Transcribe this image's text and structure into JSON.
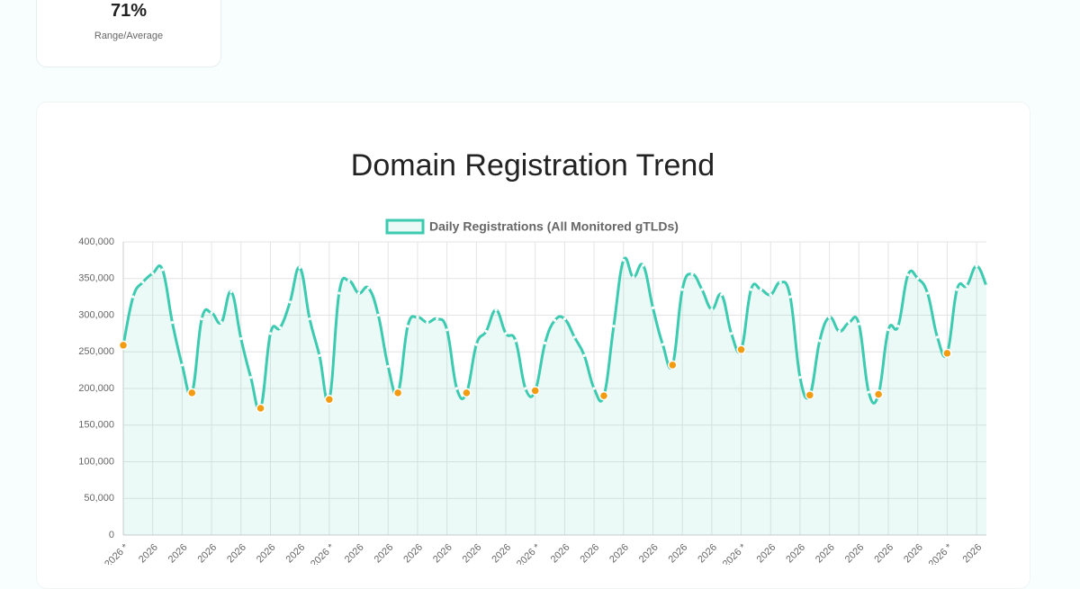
{
  "stat_card": {
    "value": "71%",
    "label": "Range/Average"
  },
  "chart_data": {
    "type": "line",
    "title": "Domain Registration Trend",
    "categories": [
      "2026 *",
      null,
      null,
      "2026",
      null,
      null,
      "2026",
      null,
      null,
      "2026",
      null,
      null,
      "2026",
      null,
      null,
      "2026",
      null,
      null,
      "2026",
      null,
      null,
      "2026 *",
      null,
      null,
      "2026",
      null,
      null,
      "2026",
      null,
      null,
      "2026",
      null,
      null,
      "2026",
      null,
      null,
      "2026",
      null,
      null,
      "2026",
      null,
      null,
      "2026 *",
      null,
      null,
      "2026",
      null,
      null,
      "2026",
      null,
      null,
      "2026",
      null,
      null,
      "2026",
      null,
      null,
      "2026",
      null,
      null,
      "2026",
      null,
      null,
      "2026 *",
      null,
      null,
      "2026",
      null,
      null,
      "2026",
      null,
      null,
      "2026",
      null,
      null,
      "2026",
      null,
      null,
      "2026",
      null,
      null,
      "2026",
      null,
      null,
      "2026 *",
      null,
      null,
      "2026",
      null
    ],
    "series": [
      {
        "name": "Daily Registrations (All Monitored gTLDs)",
        "color": "#3ccbb0",
        "fill": "rgba(60,203,176,0.10)",
        "values": [
          259000,
          325000,
          345000,
          357000,
          362000,
          290000,
          232000,
          194000,
          295000,
          303000,
          290000,
          332000,
          268000,
          215000,
          173000,
          275000,
          283000,
          318000,
          365000,
          295000,
          245000,
          185000,
          330000,
          347000,
          330000,
          337000,
          300000,
          230000,
          194000,
          285000,
          297000,
          290000,
          295000,
          280000,
          200000,
          194000,
          260000,
          278000,
          307000,
          275000,
          265000,
          200000,
          197000,
          262000,
          293000,
          295000,
          270000,
          245000,
          200000,
          190000,
          285000,
          375000,
          352000,
          368000,
          310000,
          260000,
          232000,
          335000,
          356000,
          335000,
          308000,
          328000,
          275000,
          253000,
          335000,
          335000,
          328000,
          345000,
          325000,
          215000,
          191000,
          265000,
          297000,
          278000,
          290000,
          288000,
          195000,
          192000,
          280000,
          285000,
          355000,
          350000,
          330000,
          270000,
          248000,
          335000,
          340000,
          367000,
          340000
        ],
        "point_colors": [
          "#f39c12",
          "#ffffff",
          "#ffffff",
          "#ffffff",
          "#ffffff",
          "#ffffff",
          "#ffffff",
          "#f39c12",
          "#ffffff",
          "#ffffff",
          "#ffffff",
          "#ffffff",
          "#ffffff",
          "#ffffff",
          "#f39c12",
          "#ffffff",
          "#ffffff",
          "#ffffff",
          "#ffffff",
          "#ffffff",
          "#ffffff",
          "#f39c12",
          "#ffffff",
          "#ffffff",
          "#ffffff",
          "#ffffff",
          "#ffffff",
          "#ffffff",
          "#f39c12",
          "#ffffff",
          "#ffffff",
          "#ffffff",
          "#ffffff",
          "#ffffff",
          "#ffffff",
          "#f39c12",
          "#ffffff",
          "#ffffff",
          "#ffffff",
          "#ffffff",
          "#ffffff",
          "#ffffff",
          "#f39c12",
          "#ffffff",
          "#ffffff",
          "#ffffff",
          "#ffffff",
          "#ffffff",
          "#ffffff",
          "#f39c12",
          "#ffffff",
          "#ffffff",
          "#ffffff",
          "#ffffff",
          "#ffffff",
          "#ffffff",
          "#f39c12",
          "#ffffff",
          "#ffffff",
          "#ffffff",
          "#ffffff",
          "#ffffff",
          "#ffffff",
          "#f39c12",
          "#ffffff",
          "#ffffff",
          "#ffffff",
          "#ffffff",
          "#ffffff",
          "#ffffff",
          "#f39c12",
          "#ffffff",
          "#ffffff",
          "#ffffff",
          "#ffffff",
          "#ffffff",
          "#ffffff",
          "#f39c12",
          "#ffffff",
          "#ffffff",
          "#ffffff",
          "#ffffff",
          "#ffffff",
          "#ffffff",
          "#f39c12",
          "#ffffff",
          "#ffffff",
          "#ffffff",
          "#ffffff"
        ]
      }
    ],
    "ylim": [
      0,
      400000
    ],
    "yticks": [
      0,
      {
        "value": 50000,
        "label": "50,000"
      },
      {
        "value": 100000,
        "label": "100,000"
      },
      {
        "value": 150000,
        "label": "150,000"
      },
      {
        "value": 200000,
        "label": "200,000"
      },
      {
        "value": 250000,
        "label": "250,000"
      },
      {
        "value": 300000,
        "label": "300,000"
      },
      {
        "value": 350000,
        "label": "350,000"
      },
      {
        "value": 400000,
        "label": "400,000"
      }
    ],
    "grid": true,
    "legend": "top"
  }
}
